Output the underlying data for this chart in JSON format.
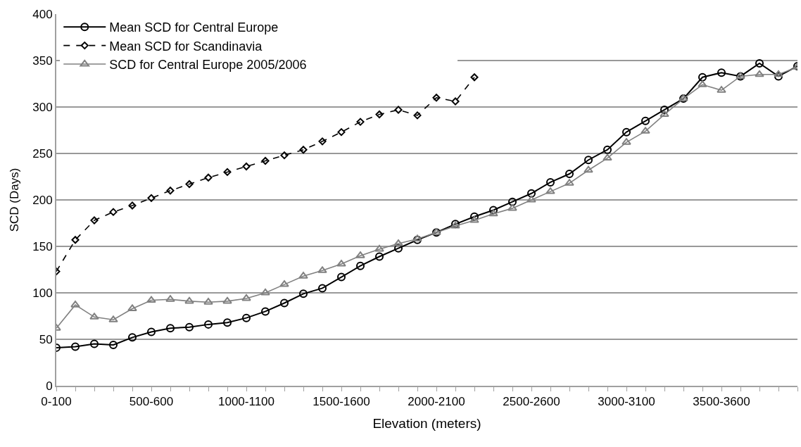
{
  "chart_data": {
    "type": "line",
    "xlabel": "Elevation (meters)",
    "ylabel": "SCD (Days)",
    "categories": [
      "0-100",
      null,
      null,
      null,
      null,
      "500-600",
      null,
      null,
      null,
      null,
      "1000-1100",
      null,
      null,
      null,
      null,
      "1500-1600",
      null,
      null,
      null,
      null,
      "2000-2100",
      null,
      null,
      null,
      null,
      "2500-2600",
      null,
      null,
      null,
      null,
      "3000-3100",
      null,
      null,
      null,
      null,
      "3500-3600",
      null,
      null,
      null,
      null
    ],
    "series": [
      {
        "name": "Mean SCD for Central Europe",
        "color": "#000000",
        "marker": "circle",
        "line_style": "solid",
        "values": [
          41,
          42,
          45,
          44,
          52,
          58,
          62,
          63,
          66,
          68,
          73,
          80,
          89,
          99,
          105,
          117,
          129,
          139,
          148,
          157,
          165,
          174,
          182,
          189,
          198,
          207,
          219,
          228,
          243,
          254,
          273,
          285,
          297,
          309,
          332,
          337,
          333,
          347,
          333,
          344
        ]
      },
      {
        "name": "Mean SCD for Scandinavia",
        "color": "#000000",
        "marker": "diamond",
        "line_style": "dashed",
        "values": [
          123,
          157,
          178,
          187,
          194,
          202,
          210,
          217,
          224,
          230,
          236,
          242,
          248,
          254,
          263,
          273,
          284,
          292,
          297,
          291,
          310,
          306,
          332,
          null,
          null,
          null,
          null,
          null,
          null,
          null,
          null,
          null,
          null,
          null,
          null,
          null,
          null,
          null,
          null,
          null
        ]
      },
      {
        "name": "SCD for Central Europe 2005/2006",
        "color": "#808080",
        "marker": "triangle",
        "line_style": "solid",
        "values": [
          62,
          87,
          74,
          71,
          83,
          92,
          93,
          91,
          90,
          91,
          94,
          100,
          109,
          118,
          124,
          131,
          140,
          147,
          153,
          158,
          165,
          172,
          178,
          185,
          191,
          200,
          209,
          218,
          232,
          245,
          262,
          274,
          292,
          309,
          324,
          318,
          333,
          335,
          335,
          343
        ]
      }
    ],
    "ylim": [
      0,
      400
    ],
    "yticks": [
      0,
      50,
      100,
      150,
      200,
      250,
      300,
      350,
      400
    ],
    "grid": "y",
    "legend": "top"
  }
}
